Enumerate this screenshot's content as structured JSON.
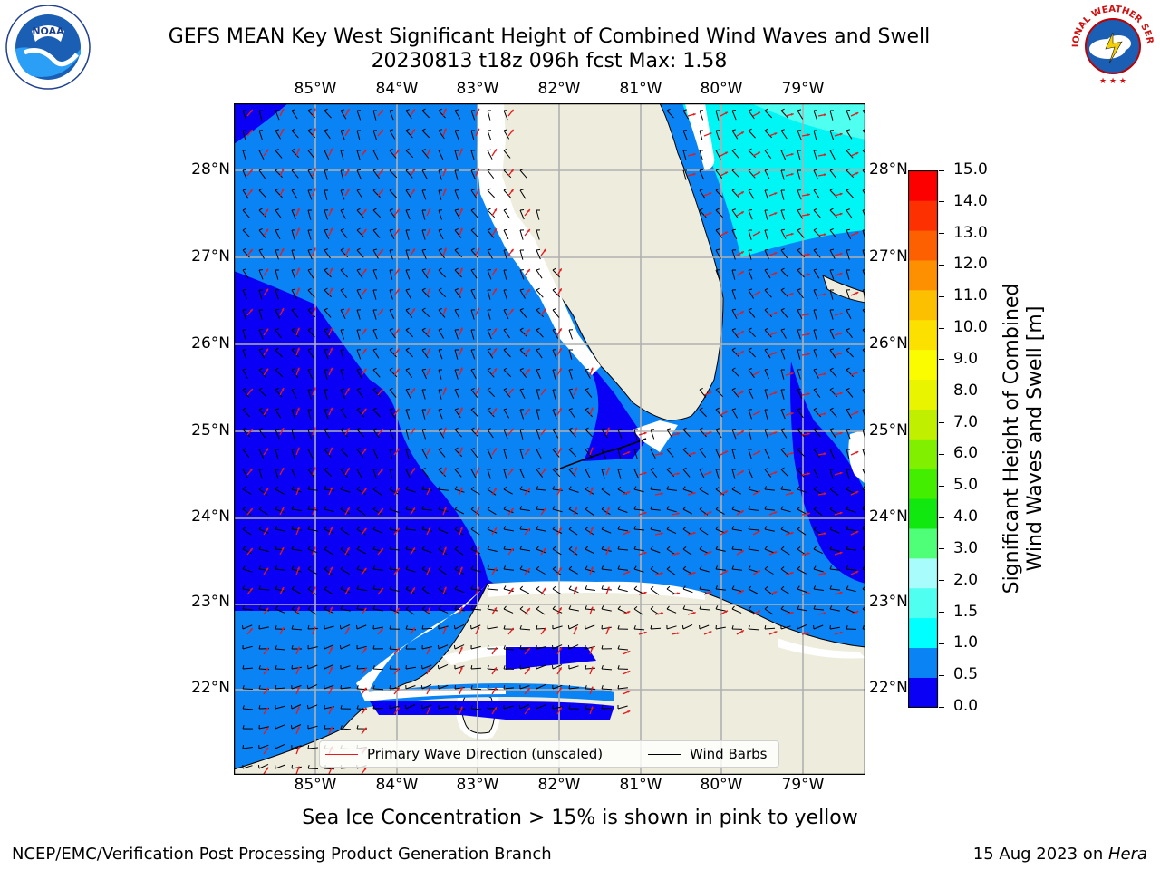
{
  "title": {
    "line1": "GEFS MEAN Key West Significant Height of Combined Wind Waves and Swell",
    "line2": "20230813 t18z 096h fcst    Max: 1.58"
  },
  "logos": {
    "left": {
      "icon": "noaa-logo-icon",
      "text": "NOAA"
    },
    "right": {
      "icon": "national-weather-service-logo-icon",
      "text": "NATIONAL WEATHER SERVICE"
    }
  },
  "map": {
    "lon_labels": [
      "85°W",
      "84°W",
      "83°W",
      "82°W",
      "81°W",
      "80°W",
      "79°W"
    ],
    "lat_labels": [
      "28°N",
      "27°N",
      "26°N",
      "25°N",
      "24°N",
      "23°N",
      "22°N"
    ],
    "colors": {
      "water_low": "#0a00f5",
      "water_mid": "#0a84f5",
      "water_high": "#00f5f5",
      "land": "#eeecdc",
      "grid": "#b0b0b0",
      "wave_arrow": "#e41a1c",
      "wind_barb": "#000000"
    }
  },
  "legend": {
    "primary_wave": "Primary Wave Direction (unscaled)",
    "wind_barbs": "Wind Barbs"
  },
  "colorbar": {
    "title_line1": "Significant Height of Combined",
    "title_line2": "Wind Waves and Swell [m]",
    "ticks": [
      "15.0",
      "14.0",
      "13.0",
      "12.0",
      "11.0",
      "10.0",
      "9.0",
      "8.0",
      "7.0",
      "6.0",
      "5.0",
      "4.0",
      "3.0",
      "2.0",
      "1.5",
      "1.0",
      "0.5",
      "0.0"
    ],
    "colors": [
      "#0a00f5",
      "#0a84f5",
      "#00ffff",
      "#4ffff0",
      "#a8fcfc",
      "#50ff78",
      "#10e810",
      "#44ee00",
      "#80f000",
      "#c0f000",
      "#e8f400",
      "#fcfc00",
      "#fce000",
      "#fcc000",
      "#fc9000",
      "#fc6000",
      "#fc3000",
      "#fc0000"
    ]
  },
  "sea_ice_note": "Sea Ice Concentration > 15% is shown in pink to yellow",
  "footer": {
    "left": "NCEP/EMC/Verification Post Processing Product Generation Branch",
    "right_date": "15 Aug 2023 on ",
    "right_host": "Hera"
  }
}
